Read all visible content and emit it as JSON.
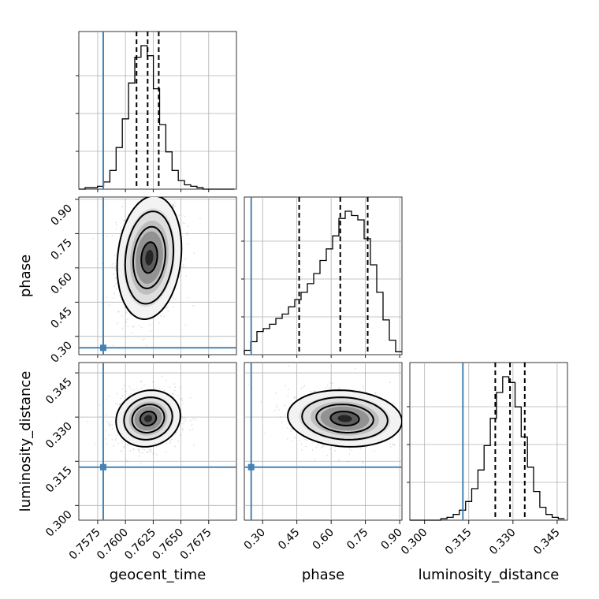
{
  "chart_data": {
    "type": "corner",
    "parameters": [
      "geocent_time",
      "phase",
      "luminosity_distance"
    ],
    "axis_labels": {
      "geocent_time": "geocent_time",
      "phase": "phase",
      "luminosity_distance": "luminosity_distance"
    },
    "ranges": {
      "geocent_time": [
        0.7558,
        0.77
      ],
      "phase": [
        0.22,
        0.91
      ],
      "luminosity_distance": [
        0.295,
        0.3485
      ]
    },
    "ticks": {
      "geocent_time": [
        "0.7575",
        "0.7600",
        "0.7625",
        "0.7650",
        "0.7675"
      ],
      "phase": [
        "0.30",
        "0.45",
        "0.60",
        "0.75",
        "0.90"
      ],
      "luminosity_distance": [
        "0.300",
        "0.315",
        "0.330",
        "0.345"
      ]
    },
    "tick_values": {
      "geocent_time": [
        0.7575,
        0.76,
        0.7625,
        0.765,
        0.7675
      ],
      "phase": [
        0.3,
        0.45,
        0.6,
        0.75,
        0.9
      ],
      "luminosity_distance": [
        0.3,
        0.315,
        0.33,
        0.345
      ]
    },
    "truths": {
      "geocent_time": 0.758,
      "phase": 0.25,
      "luminosity_distance": 0.313
    },
    "quantiles": {
      "geocent_time": [
        0.761,
        0.762,
        0.763
      ],
      "phase": [
        0.46,
        0.64,
        0.76
      ],
      "luminosity_distance": [
        0.324,
        0.329,
        0.334
      ]
    },
    "histograms": {
      "geocent_time": {
        "edges": [
          0.7558,
          0.75636,
          0.75692,
          0.75748,
          0.75804,
          0.7586,
          0.75916,
          0.75972,
          0.76028,
          0.76084,
          0.7614,
          0.76196,
          0.76252,
          0.76308,
          0.76364,
          0.7642,
          0.76476,
          0.76532,
          0.76588,
          0.76644,
          0.767,
          0.76756,
          0.76812,
          0.76868,
          0.76924,
          0.7698
        ],
        "counts": [
          0,
          0.01,
          0.01,
          0.02,
          0.05,
          0.13,
          0.29,
          0.49,
          0.74,
          0.92,
          1.0,
          0.93,
          0.7,
          0.45,
          0.26,
          0.13,
          0.06,
          0.03,
          0.02,
          0.01,
          0,
          0,
          0,
          0,
          0
        ]
      },
      "phase": {
        "edges": [
          0.22,
          0.2476,
          0.2752,
          0.3028,
          0.3304,
          0.358,
          0.3856,
          0.4132,
          0.4408,
          0.4684,
          0.496,
          0.5236,
          0.5512,
          0.5788,
          0.6064,
          0.634,
          0.6616,
          0.6892,
          0.7168,
          0.7444,
          0.772,
          0.7996,
          0.8272,
          0.8548,
          0.8824,
          0.91
        ],
        "counts": [
          0.03,
          0.09,
          0.16,
          0.18,
          0.21,
          0.25,
          0.28,
          0.33,
          0.38,
          0.43,
          0.49,
          0.56,
          0.65,
          0.73,
          0.82,
          0.94,
          0.99,
          0.96,
          0.93,
          0.8,
          0.62,
          0.43,
          0.24,
          0.1,
          0.02
        ]
      },
      "luminosity_distance": {
        "edges": [
          0.295,
          0.2971,
          0.2992,
          0.3013,
          0.3034,
          0.3055,
          0.3076,
          0.3097,
          0.3118,
          0.3139,
          0.316,
          0.3181,
          0.3202,
          0.3223,
          0.3244,
          0.3265,
          0.3286,
          0.3307,
          0.3328,
          0.3349,
          0.337,
          0.3391,
          0.3412,
          0.3433,
          0.3454,
          0.3475
        ],
        "counts": [
          0,
          0,
          0,
          0,
          0,
          0.01,
          0.02,
          0.04,
          0.07,
          0.13,
          0.22,
          0.35,
          0.52,
          0.71,
          0.89,
          1.0,
          0.96,
          0.79,
          0.58,
          0.37,
          0.2,
          0.09,
          0.04,
          0.02,
          0.01
        ]
      }
    },
    "pairs": [
      {
        "x": "geocent_time",
        "y": "phase",
        "mean": [
          0.76215,
          0.645
        ],
        "sigma": [
          0.00145,
          0.135
        ],
        "rho": 0.15,
        "contour_levels_sigma": [
          0.5,
          1.0,
          1.5,
          2.0
        ]
      },
      {
        "x": "geocent_time",
        "y": "luminosity_distance",
        "mean": [
          0.76205,
          0.3295
        ],
        "sigma": [
          0.00145,
          0.0048
        ],
        "rho": 0.1,
        "contour_levels_sigma": [
          0.5,
          1.0,
          1.5,
          2.0
        ]
      },
      {
        "x": "phase",
        "y": "luminosity_distance",
        "mean": [
          0.66,
          0.3295
        ],
        "sigma": [
          0.125,
          0.0048
        ],
        "rho": -0.1,
        "contour_levels_sigma": [
          0.5,
          1.0,
          1.5,
          2.0
        ]
      }
    ],
    "grid": true,
    "colors": {
      "truth": "#4682b4",
      "hist": "#000000",
      "contour": "#000000",
      "gridline": "#b0b0b0"
    }
  }
}
